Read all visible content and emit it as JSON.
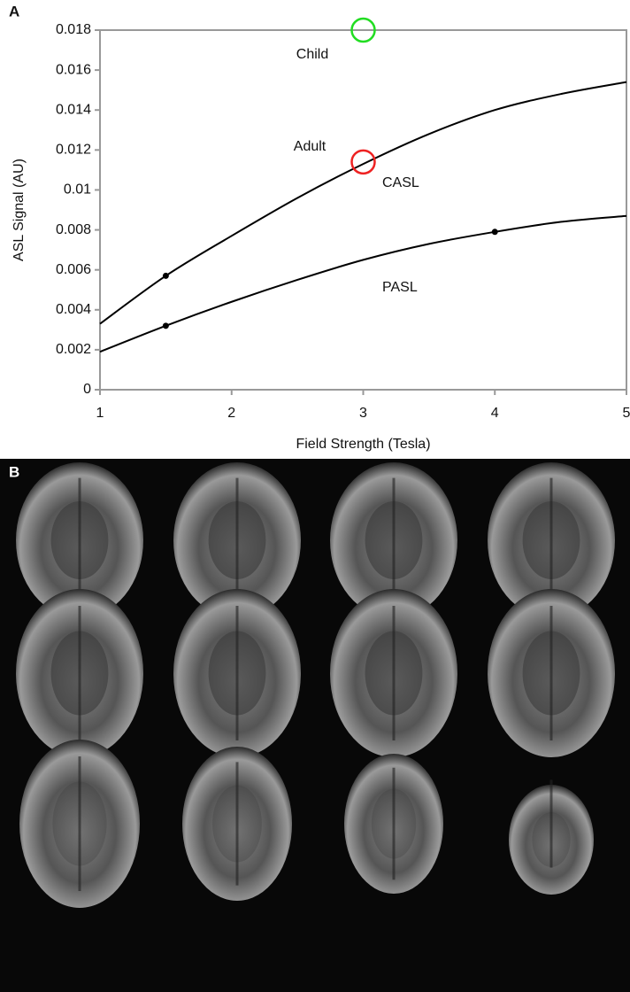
{
  "chart_data": {
    "type": "line",
    "panel_label": "A",
    "xlabel": "Field Strength (Tesla)",
    "ylabel": "ASL Signal (AU)",
    "x": [
      1,
      1.5,
      2,
      2.5,
      3,
      3.5,
      4,
      4.5,
      5
    ],
    "series": [
      {
        "name": "CASL",
        "color": "#000000",
        "values": [
          0.0033,
          0.0057,
          0.0077,
          0.0096,
          0.0113,
          0.0128,
          0.014,
          0.0148,
          0.0154
        ]
      },
      {
        "name": "PASL",
        "color": "#000000",
        "values": [
          0.0019,
          0.0032,
          0.0044,
          0.0055,
          0.0065,
          0.0073,
          0.0079,
          0.0084,
          0.0087
        ]
      }
    ],
    "points": [
      {
        "x": 1.5,
        "y": 0.0057
      },
      {
        "x": 1.5,
        "y": 0.0032
      },
      {
        "x": 4,
        "y": 0.0079
      }
    ],
    "highlights": [
      {
        "label": "Child",
        "x": 3,
        "y": 0.018,
        "color": "#22dd22"
      },
      {
        "label": "Adult",
        "x": 3,
        "y": 0.0114,
        "color": "#ee2222"
      }
    ],
    "xlim": [
      1,
      5
    ],
    "ylim": [
      0,
      0.018
    ],
    "xticks": [
      1,
      2,
      3,
      4,
      5
    ],
    "yticks": [
      0,
      0.002,
      0.004,
      0.006,
      0.008,
      0.01,
      0.012,
      0.014,
      0.016,
      0.018
    ],
    "grid": false
  },
  "panel_b": {
    "label": "B"
  }
}
